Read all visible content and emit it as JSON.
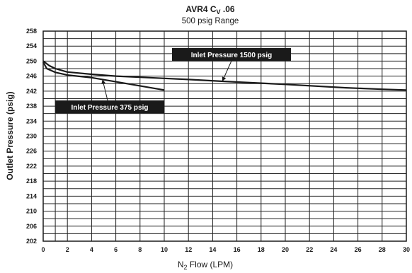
{
  "chart_data": {
    "type": "line",
    "title": "AVR4 C",
    "title_subscript": "V",
    "title_suffix": " .06",
    "subtitle": "500 psig Range",
    "xlabel_pre": "N",
    "xlabel_sub": "2",
    "xlabel_post": " Flow (LPM)",
    "ylabel": "Outlet Pressure (psig)",
    "xlim": [
      0,
      30
    ],
    "ylim": [
      202,
      258
    ],
    "x_ticks": [
      0,
      2,
      4,
      6,
      8,
      10,
      12,
      14,
      16,
      18,
      20,
      22,
      24,
      26,
      28,
      30
    ],
    "y_ticks": [
      202,
      206,
      210,
      214,
      218,
      222,
      226,
      230,
      234,
      238,
      242,
      246,
      250,
      254,
      258
    ],
    "x_grid": [
      0,
      1,
      2,
      4,
      6,
      8,
      10,
      12,
      14,
      16,
      18,
      20,
      22,
      24,
      26,
      28,
      30
    ],
    "y_grid": [
      202,
      204,
      206,
      208,
      210,
      212,
      214,
      216,
      218,
      220,
      222,
      224,
      226,
      228,
      230,
      232,
      234,
      236,
      238,
      240,
      242,
      244,
      246,
      248,
      250,
      252,
      254,
      256,
      258
    ],
    "grid": true,
    "series": [
      {
        "name": "Inlet Pressure 1500 psig",
        "x": [
          0,
          0.5,
          1,
          2,
          4,
          6,
          8,
          10,
          12,
          15,
          20,
          25,
          28,
          30
        ],
        "y": [
          250.0,
          248.8,
          248.0,
          247.1,
          246.5,
          246.0,
          245.7,
          245.4,
          245.1,
          244.6,
          243.8,
          242.9,
          242.5,
          242.3
        ]
      },
      {
        "name": "Inlet Pressure 375 psig",
        "x": [
          0,
          0.3,
          1,
          2,
          4,
          6,
          8,
          10
        ],
        "y": [
          249.7,
          248.0,
          247.0,
          246.3,
          245.6,
          244.5,
          243.4,
          242.3
        ]
      }
    ],
    "annotations": [
      {
        "text": "Inlet Pressure 1500 psig",
        "series": 0
      },
      {
        "text": "Inlet Pressure 375 psig",
        "series": 1
      }
    ]
  }
}
